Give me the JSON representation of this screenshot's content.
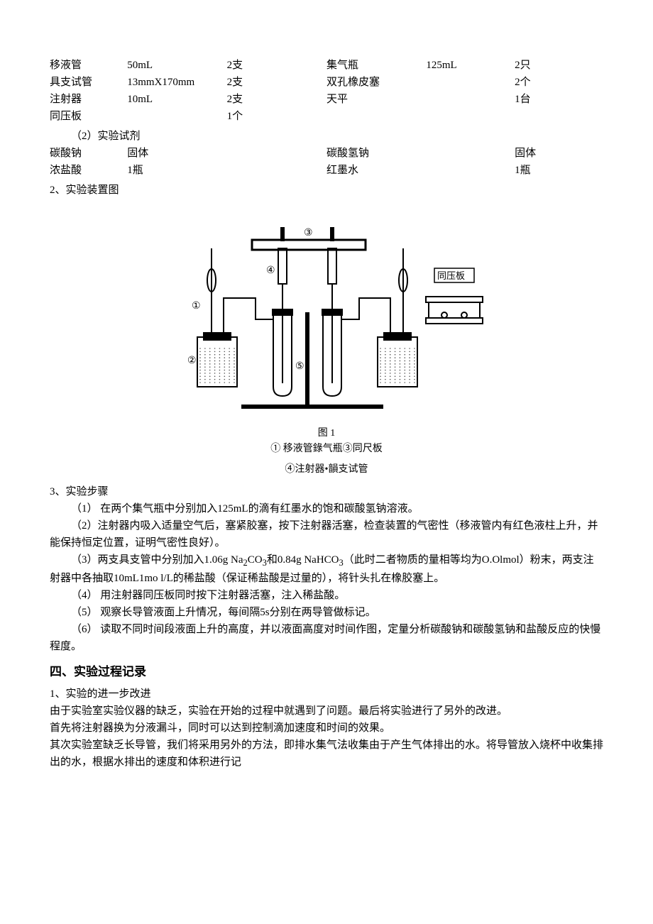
{
  "equipment_rows": [
    {
      "n1": "移液管",
      "s1": "50mL",
      "q1": "2支",
      "n2": "集气瓶",
      "s2": "125mL",
      "q2": "2只"
    },
    {
      "n1": "具支试管",
      "s1": "13mmX170mm",
      "q1": "2支",
      "n2": "双孔橡皮塞",
      "s2": "",
      "q2": "2个"
    },
    {
      "n1": "注射器",
      "s1": "10mL",
      "q1": "2支",
      "n2": "天平",
      "s2": "",
      "q2": "1台"
    },
    {
      "n1": "同压板",
      "s1": "",
      "q1": "1个",
      "n2": "",
      "s2": "",
      "q2": ""
    }
  ],
  "subheading_reagent": "（2）实验试剂",
  "reagent_rows": [
    {
      "n1": "碳酸钠",
      "q1": "固体",
      "n2": "碳酸氢钠",
      "q2": "固体"
    },
    {
      "n1": "浓盐酸",
      "q1": "1瓶",
      "n2": "红墨水",
      "q2": "1瓶"
    }
  ],
  "heading_diagram": "2、实验装置图",
  "diagram": {
    "caption_title": "图 1",
    "caption_line1": "① 移液管錄气瓶③同尺板",
    "caption_line2": "④注射器•韻支试管",
    "box_label": "同压板",
    "labels": {
      "l1": "①",
      "l2": "②",
      "l3": "③",
      "l4": "④",
      "l5": "⑤"
    }
  },
  "heading_steps": "3、实验步骤",
  "steps_text": {
    "p1": "（1）   在两个集气瓶中分别加入125mL的滴有红墨水的饱和碳酸氢钠溶液。",
    "p2": "（2）注射器内吸入适量空气后，塞紧胶塞，按下注射器活塞，检查装置的气密性（移液管内有红色液柱上升，并能保持恒定位置，证明气密性良好）。",
    "p3a": "（3）两支具支管中分别加入1.06g Na",
    "p3_sub1": "2",
    "p3b": "CO",
    "p3_sub2": "3",
    "p3c": "和0.84g NaHCO",
    "p3_sub3": "3",
    "p3d": "（此时二者物质的量相等均为O.Olmol）粉末，两支注射器中各抽取10mL1mo l/L的稀盐酸（保证稀盐酸是过量的），将针头扎在橡胶塞上。",
    "p4": "（4）   用注射器同压板同时按下注射器活塞，注入稀盐酸。",
    "p5": "（5）   观察长导管液面上升情况，每间隔5s分别在两导管做标记。",
    "p6": "（6）   读取不同时间段液面上升的高度，并以液面高度对时间作图，定量分析碳酸钠和碳酸氢钠和盐酸反应的快慢程度。"
  },
  "section4_title": "四、实验过程记录",
  "section4": {
    "p1": "1、实验的进一步改进",
    "p2": "由于实验室实验仪器的缺乏，实验在开始的过程中就遇到了问题。最后将实验进行了另外的改进。",
    "p3": "首先将注射器换为分液漏斗，同时可以达到控制滴加速度和时间的效果。",
    "p4": "其次实验室缺乏长导管，我们将采用另外的方法，即排水集气法收集由于产生气体排出的水。将导管放入烧杯中收集排出的水，根据水排出的速度和体积进行记"
  },
  "colors": {
    "text": "#000000",
    "bg": "#ffffff",
    "line": "#000000",
    "hatch": "#888888"
  }
}
